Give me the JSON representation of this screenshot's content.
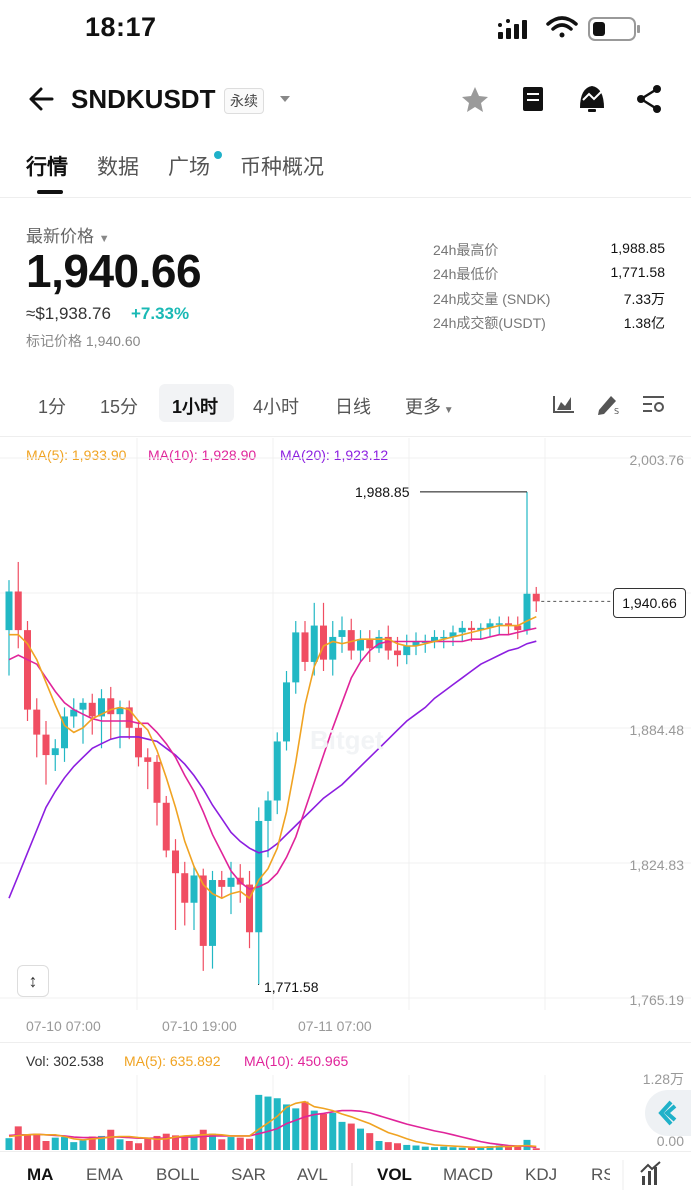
{
  "status_bar": {
    "time": "18:17"
  },
  "header": {
    "title": "SNDKUSDT",
    "badge": "永续"
  },
  "tabs": [
    {
      "label": "行情",
      "active": true
    },
    {
      "label": "数据",
      "active": false
    },
    {
      "label": "广场",
      "active": false,
      "dot": true
    },
    {
      "label": "币种概况",
      "active": false
    }
  ],
  "price": {
    "label": "最新价格",
    "last": "1,940.66",
    "usd": "≈$1,938.76",
    "change": "+7.33%",
    "mark": "标记价格 1,940.60"
  },
  "stats": [
    {
      "label": "24h最高价",
      "value": "1,988.85"
    },
    {
      "label": "24h最低价",
      "value": "1,771.58"
    },
    {
      "label": "24h成交量 (SNDK)",
      "value": "7.33万"
    },
    {
      "label": "24h成交额(USDT)",
      "value": "1.38亿"
    }
  ],
  "timeframes": [
    {
      "label": "1分",
      "active": false
    },
    {
      "label": "15分",
      "active": false
    },
    {
      "label": "1小时",
      "active": true
    },
    {
      "label": "4小时",
      "active": false
    },
    {
      "label": "日线",
      "active": false
    },
    {
      "label": "更多",
      "active": false
    }
  ],
  "ma_legend": {
    "ma5": "MA(5): 1,933.90",
    "ma10": "MA(10): 1,928.90",
    "ma20": "MA(20): 1,923.12"
  },
  "price_axis": [
    "2,003.76",
    "1,884.48",
    "1,824.83",
    "1,765.19"
  ],
  "current_price_tag": "1,940.66",
  "high_label": "1,988.85",
  "low_label": "1,771.58",
  "watermark": "Bitget",
  "dates": [
    "07-10 07:00",
    "07-10 19:00",
    "07-11 07:00"
  ],
  "volume": {
    "vol": "Vol: 302.538",
    "ma5": "MA(5): 635.892",
    "ma10": "MA(10): 450.965",
    "axis_top": "1.28万",
    "axis_bottom": "0.00"
  },
  "indicators": [
    {
      "label": "MA",
      "active": true
    },
    {
      "label": "EMA",
      "active": false
    },
    {
      "label": "BOLL",
      "active": false
    },
    {
      "label": "SAR",
      "active": false
    },
    {
      "label": "AVL",
      "active": false
    },
    {
      "label": "VOL",
      "active": true
    },
    {
      "label": "MACD",
      "active": false
    },
    {
      "label": "KDJ",
      "active": false
    },
    {
      "label": "RS",
      "active": false
    }
  ],
  "colors": {
    "up": "#22b8c4",
    "down": "#f04e62",
    "ma5": "#f0a322",
    "ma10": "#e0249a",
    "ma20": "#8c1ee0"
  },
  "chart_data": {
    "type": "candlestick",
    "interval": "1h",
    "ylim": [
      1765.19,
      2003.76
    ],
    "candles": [
      [
        1928,
        1945,
        1950,
        1908
      ],
      [
        1945,
        1928,
        1958,
        1920
      ],
      [
        1928,
        1893,
        1932,
        1888
      ],
      [
        1893,
        1882,
        1898,
        1872
      ],
      [
        1882,
        1873,
        1888,
        1860
      ],
      [
        1873,
        1876,
        1880,
        1866
      ],
      [
        1876,
        1890,
        1894,
        1870
      ],
      [
        1890,
        1893,
        1898,
        1885
      ],
      [
        1893,
        1896,
        1898,
        1878
      ],
      [
        1896,
        1890,
        1900,
        1882
      ],
      [
        1890,
        1898,
        1902,
        1876
      ],
      [
        1898,
        1891,
        1903,
        1880
      ],
      [
        1891,
        1894,
        1897,
        1876
      ],
      [
        1894,
        1885,
        1897,
        1880
      ],
      [
        1885,
        1872,
        1888,
        1868
      ],
      [
        1872,
        1870,
        1876,
        1858
      ],
      [
        1870,
        1852,
        1873,
        1842
      ],
      [
        1852,
        1831,
        1855,
        1828
      ],
      [
        1831,
        1821,
        1836,
        1796
      ],
      [
        1821,
        1808,
        1826,
        1798
      ],
      [
        1808,
        1820,
        1824,
        1796
      ],
      [
        1820,
        1789,
        1823,
        1778
      ],
      [
        1789,
        1818,
        1822,
        1779
      ],
      [
        1818,
        1815,
        1822,
        1810
      ],
      [
        1815,
        1819,
        1826,
        1803
      ],
      [
        1819,
        1816,
        1825,
        1808
      ],
      [
        1816,
        1795,
        1822,
        1788
      ],
      [
        1795,
        1844,
        1850,
        1772
      ],
      [
        1844,
        1853,
        1857,
        1828
      ],
      [
        1853,
        1879,
        1883,
        1847
      ],
      [
        1879,
        1905,
        1910,
        1875
      ],
      [
        1905,
        1927,
        1932,
        1900
      ],
      [
        1927,
        1914,
        1932,
        1910
      ],
      [
        1914,
        1930,
        1940,
        1908
      ],
      [
        1930,
        1915,
        1940,
        1910
      ],
      [
        1915,
        1925,
        1932,
        1908
      ],
      [
        1925,
        1928,
        1934,
        1918
      ],
      [
        1928,
        1919,
        1933,
        1915
      ],
      [
        1919,
        1924,
        1928,
        1914
      ],
      [
        1924,
        1920,
        1928,
        1914
      ],
      [
        1920,
        1925,
        1928,
        1918
      ],
      [
        1925,
        1919,
        1930,
        1915
      ],
      [
        1919,
        1917,
        1925,
        1912
      ],
      [
        1917,
        1921,
        1926,
        1913
      ],
      [
        1921,
        1923,
        1927,
        1917
      ],
      [
        1923,
        1923,
        1926,
        1918
      ],
      [
        1923,
        1925,
        1928,
        1920
      ],
      [
        1925,
        1925,
        1928,
        1920
      ],
      [
        1925,
        1927,
        1930,
        1921
      ],
      [
        1927,
        1929,
        1932,
        1923
      ],
      [
        1929,
        1928,
        1932,
        1923
      ],
      [
        1928,
        1929,
        1931,
        1924
      ],
      [
        1929,
        1931,
        1933,
        1925
      ],
      [
        1931,
        1931,
        1934,
        1926
      ],
      [
        1931,
        1930,
        1934,
        1926
      ],
      [
        1930,
        1928,
        1934,
        1924
      ],
      [
        1928,
        1944,
        1988.85,
        1926
      ],
      [
        1944,
        1940.66,
        1947,
        1936
      ]
    ],
    "ma5": [
      1926,
      1926,
      1922,
      1915,
      1905,
      1895,
      1886,
      1883,
      1885,
      1889,
      1891,
      1893,
      1894,
      1893,
      1888,
      1884,
      1875,
      1863,
      1850,
      1835,
      1824,
      1816,
      1812,
      1810,
      1812,
      1813,
      1810,
      1818,
      1823,
      1832,
      1848,
      1870,
      1895,
      1912,
      1921,
      1923,
      1922,
      1923,
      1924,
      1924,
      1924,
      1924,
      1922,
      1921,
      1921,
      1922,
      1923,
      1924,
      1925,
      1926,
      1927,
      1928,
      1929,
      1930,
      1930,
      1930,
      1932,
      1933.9
    ],
    "ma10": [
      1915,
      1917,
      1915,
      1913,
      1907,
      1901,
      1896,
      1893,
      1891,
      1889,
      1888,
      1888,
      1888,
      1888,
      1887,
      1887,
      1883,
      1878,
      1872,
      1864,
      1857,
      1848,
      1838,
      1830,
      1822,
      1817,
      1814,
      1815,
      1817,
      1821,
      1828,
      1837,
      1849,
      1861,
      1873,
      1885,
      1896,
      1907,
      1914,
      1919,
      1922,
      1923,
      1923,
      1923,
      1923,
      1923,
      1923,
      1923,
      1923,
      1923,
      1924,
      1924,
      1925,
      1926,
      1926,
      1927,
      1928,
      1928.9
    ],
    "ma20": [
      1810,
      1820,
      1830,
      1840,
      1850,
      1857,
      1863,
      1868,
      1872,
      1876,
      1878,
      1880,
      1881,
      1881,
      1881,
      1880,
      1879,
      1876,
      1873,
      1869,
      1864,
      1858,
      1851,
      1845,
      1839,
      1835,
      1832,
      1830,
      1831,
      1834,
      1838,
      1842,
      1846,
      1850,
      1854,
      1857,
      1860,
      1864,
      1868,
      1872,
      1876,
      1880,
      1884,
      1888,
      1891,
      1894,
      1898,
      1901,
      1904,
      1907,
      1910,
      1913,
      1915,
      1917,
      1919,
      1920,
      1922,
      1923.12
    ],
    "volume": [
      2100,
      4200,
      2600,
      2900,
      1600,
      2200,
      2300,
      1400,
      1700,
      2400,
      2500,
      3600,
      1900,
      1600,
      1200,
      2000,
      2500,
      2900,
      2600,
      2300,
      2300,
      3600,
      2900,
      1900,
      2300,
      2200,
      2000,
      9800,
      9500,
      9200,
      8100,
      7400,
      8600,
      7000,
      6400,
      6600,
      5000,
      4700,
      3800,
      3000,
      1600,
      1400,
      1200,
      900,
      800,
      600,
      500,
      600,
      500,
      400,
      400,
      500,
      700,
      800,
      700,
      600,
      1800,
      302.538
    ],
    "vol_ma5": [
      2400,
      2600,
      2700,
      2800,
      2700,
      2700,
      2400,
      2000,
      1800,
      2000,
      2100,
      2300,
      2400,
      2400,
      2200,
      2100,
      1900,
      2000,
      2300,
      2500,
      2600,
      2700,
      2800,
      2700,
      2500,
      2500,
      2500,
      3700,
      4800,
      6000,
      7600,
      8300,
      8600,
      7700,
      7400,
      7000,
      6400,
      5900,
      5300,
      4700,
      3900,
      3100,
      2600,
      2000,
      1500,
      1200,
      900,
      800,
      700,
      600,
      500,
      500,
      500,
      600,
      600,
      700,
      800,
      635.892
    ],
    "vol_ma10": [
      2600,
      2700,
      2700,
      2800,
      2700,
      2600,
      2500,
      2300,
      2200,
      2200,
      2200,
      2300,
      2300,
      2200,
      2100,
      2100,
      2100,
      2100,
      2200,
      2300,
      2300,
      2400,
      2500,
      2500,
      2500,
      2500,
      2500,
      2900,
      3300,
      3800,
      4700,
      5300,
      5900,
      6300,
      6500,
      6800,
      7000,
      7000,
      6900,
      6600,
      6100,
      5600,
      5100,
      4600,
      4200,
      3800,
      3400,
      3100,
      2700,
      2300,
      1900,
      1500,
      1200,
      1000,
      800,
      700,
      700,
      450.965
    ]
  }
}
